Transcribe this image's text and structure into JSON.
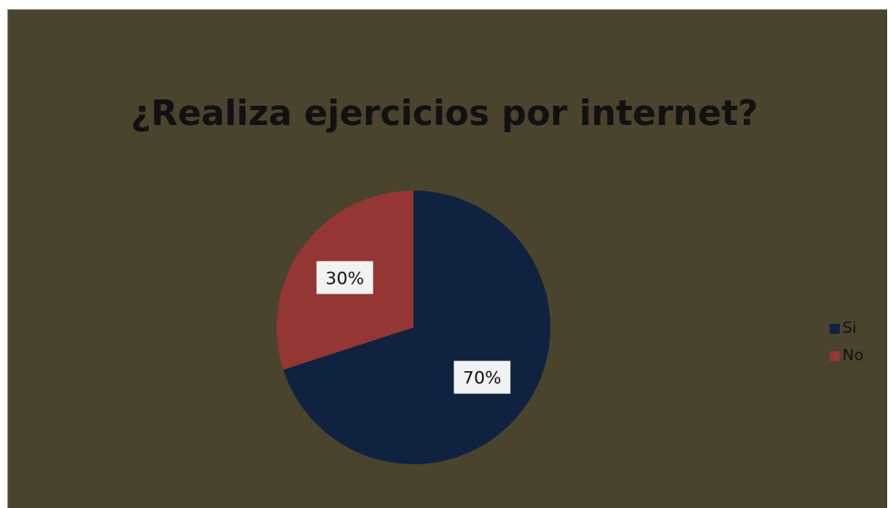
{
  "chart_data": {
    "type": "pie",
    "title": "¿Realiza ejercicios por internet?",
    "categories": [
      "Si",
      "No"
    ],
    "values": [
      70,
      30
    ],
    "labels": [
      "70%",
      "30%"
    ],
    "colors": [
      "#0f2240",
      "#943634"
    ],
    "background": "#4a432d",
    "legend_position": "right",
    "start_angle_deg": 0,
    "direction": "clockwise"
  }
}
